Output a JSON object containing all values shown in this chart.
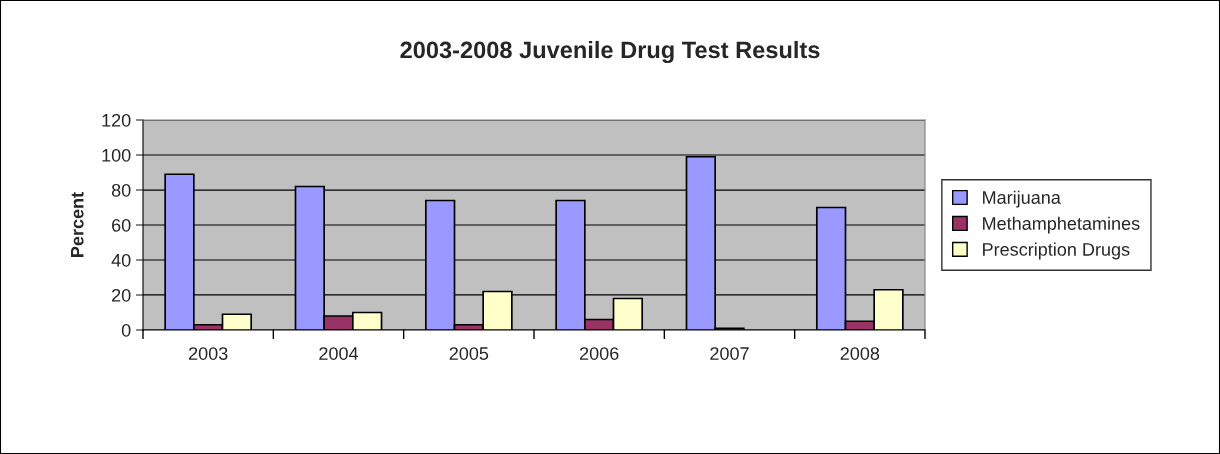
{
  "chart_data": {
    "type": "bar",
    "title": "2003-2008 Juvenile Drug Test Results",
    "ylabel": "Percent",
    "categories": [
      "2003",
      "2004",
      "2005",
      "2006",
      "2007",
      "2008"
    ],
    "series": [
      {
        "name": "Marijuana",
        "color": "#9999ff",
        "values": [
          89,
          82,
          74,
          74,
          99,
          70
        ]
      },
      {
        "name": "Methamphetamines",
        "color": "#993366",
        "values": [
          3,
          8,
          3,
          6,
          1,
          5
        ]
      },
      {
        "name": "Prescription Drugs",
        "color": "#ffffcc",
        "values": [
          9,
          10,
          22,
          18,
          null,
          23
        ]
      }
    ],
    "ylim": [
      0,
      120
    ],
    "yticks": [
      0,
      20,
      40,
      60,
      80,
      100,
      120
    ],
    "grid": "y",
    "legend": "right"
  }
}
